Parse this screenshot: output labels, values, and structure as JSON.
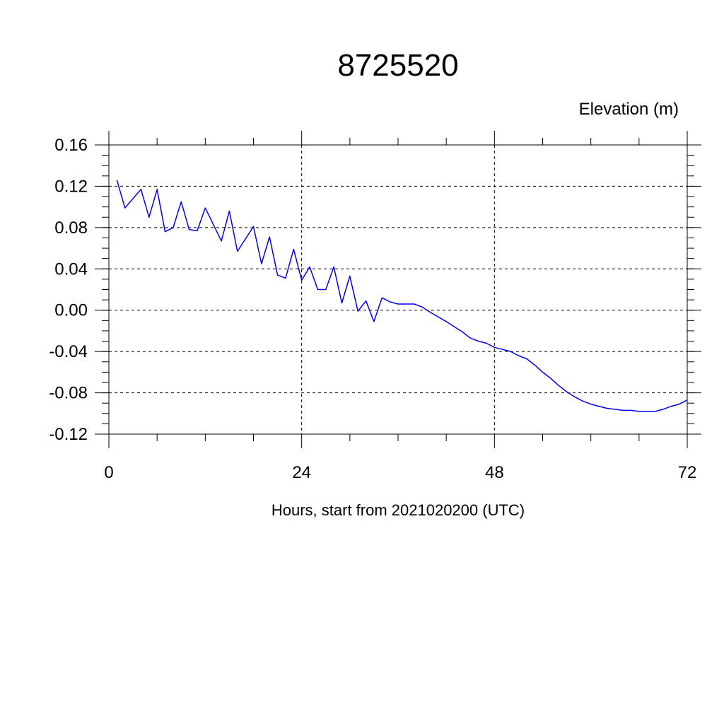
{
  "chart_data": {
    "type": "line",
    "title": "8725520",
    "ylabel": "Elevation (m)",
    "xlabel": "Hours, start from 2021020200 (UTC)",
    "xlim": [
      0,
      72
    ],
    "ylim": [
      -0.12,
      0.16
    ],
    "x_ticks": [
      0,
      24,
      48,
      72
    ],
    "x_tick_labels": [
      "0",
      "24",
      "48",
      "72"
    ],
    "y_ticks": [
      -0.12,
      -0.08,
      -0.04,
      0.0,
      0.04,
      0.08,
      0.12,
      0.16
    ],
    "y_tick_labels": [
      "-0.12",
      "-0.08",
      "-0.04",
      "0.00",
      "0.04",
      "0.08",
      "0.12",
      "0.16"
    ],
    "grid": true,
    "series_color": "#0000ee",
    "series": [
      {
        "x": [
          1,
          2,
          4,
          5,
          6,
          7,
          8,
          9,
          10,
          11,
          12,
          14,
          15,
          16,
          18,
          19,
          20,
          21,
          22,
          23,
          24,
          25,
          26,
          27,
          28,
          29,
          30,
          31,
          32,
          33,
          34,
          35,
          36,
          37,
          38,
          39,
          40,
          42,
          44,
          45,
          46,
          47,
          48,
          49,
          50,
          51,
          52,
          53,
          54,
          55,
          56,
          57,
          58,
          59,
          60,
          61,
          62,
          63,
          64,
          65,
          66,
          67,
          68,
          69,
          70,
          71,
          72
        ],
        "y": [
          0.126,
          0.099,
          0.117,
          0.09,
          0.117,
          0.076,
          0.08,
          0.105,
          0.078,
          0.077,
          0.099,
          0.067,
          0.096,
          0.057,
          0.081,
          0.045,
          0.071,
          0.034,
          0.031,
          0.059,
          0.029,
          0.042,
          0.02,
          0.02,
          0.042,
          0.007,
          0.033,
          -0.001,
          0.009,
          -0.011,
          0.012,
          0.008,
          0.006,
          0.006,
          0.006,
          0.003,
          -0.002,
          -0.011,
          -0.021,
          -0.027,
          -0.03,
          -0.032,
          -0.036,
          -0.038,
          -0.04,
          -0.044,
          -0.047,
          -0.053,
          -0.06,
          -0.066,
          -0.073,
          -0.079,
          -0.084,
          -0.088,
          -0.091,
          -0.093,
          -0.095,
          -0.096,
          -0.097,
          -0.097,
          -0.098,
          -0.098,
          -0.098,
          -0.096,
          -0.093,
          -0.091,
          -0.087
        ]
      }
    ]
  }
}
